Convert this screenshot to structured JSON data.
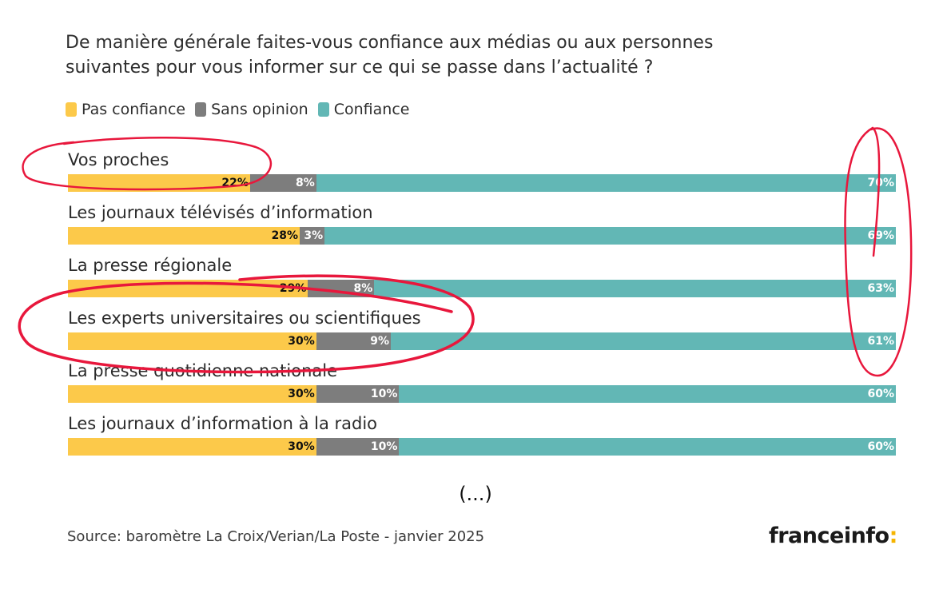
{
  "title_lines": [
    "De manière générale faites-vous confiance aux médias ou aux personnes",
    "suivantes pour vous informer sur ce qui se passe dans l’actualité ?"
  ],
  "legend": [
    {
      "label": "Pas confiance",
      "color": "#fcc94a"
    },
    {
      "label": "Sans opinion",
      "color": "#7d7d7d"
    },
    {
      "label": "Confiance",
      "color": "#62b7b5"
    }
  ],
  "chart_data": {
    "type": "bar",
    "orientation": "horizontal",
    "stacked": true,
    "stack_total": 100,
    "categories": [
      "Vos proches",
      "Les journaux télévisés d’information",
      "La presse régionale",
      "Les experts universitaires ou scientifiques",
      "La presse quotidienne nationale",
      "Les journaux d’information à la radio"
    ],
    "series": [
      {
        "name": "Pas confiance",
        "values": [
          22,
          28,
          29,
          30,
          30,
          30
        ]
      },
      {
        "name": "Sans opinion",
        "values": [
          8,
          3,
          8,
          9,
          10,
          10
        ]
      },
      {
        "name": "Confiance",
        "values": [
          70,
          69,
          63,
          61,
          60,
          60
        ]
      }
    ],
    "value_suffix": "%",
    "legend_position": "top-left",
    "grid": false
  },
  "ellipsis": "(...)",
  "source": "Source: baromètre La Croix/Verian/La Poste - janvier 2025",
  "brand": {
    "name": "franceinfo",
    "colon": ":",
    "colon_color": "#f5b400"
  },
  "annotation_color": "#e8173c"
}
